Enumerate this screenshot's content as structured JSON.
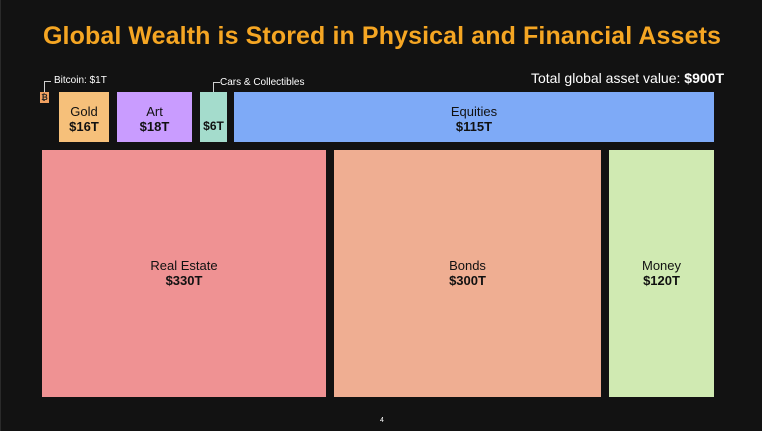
{
  "title": "Global Wealth is Stored in Physical and Financial Assets",
  "total_label": "Total global asset value: ",
  "total_value": "$900T",
  "callouts": {
    "bitcoin": "Bitcoin: $1T",
    "cars": "Cars & Collectibles",
    "bitcoin_icon": "bitcoin-glyph"
  },
  "page_number": "4",
  "chart_data": {
    "type": "treemap",
    "unit": "$T",
    "items": [
      {
        "name": "Bitcoin",
        "value": 1,
        "value_label": "",
        "color": "#f0a060"
      },
      {
        "name": "Gold",
        "value": 16,
        "value_label": "$16T",
        "color": "#f6c07a"
      },
      {
        "name": "Art",
        "value": 18,
        "value_label": "$18T",
        "color": "#c99cff"
      },
      {
        "name": "Cars & Collectibles",
        "value": 6,
        "value_label": "$6T",
        "color": "#a4dccc"
      },
      {
        "name": "Equities",
        "value": 115,
        "value_label": "$115T",
        "color": "#7eaaf7"
      },
      {
        "name": "Real Estate",
        "value": 330,
        "value_label": "$330T",
        "color": "#ef9293"
      },
      {
        "name": "Bonds",
        "value": 300,
        "value_label": "$300T",
        "color": "#efae92"
      },
      {
        "name": "Money",
        "value": 120,
        "value_label": "$120T",
        "color": "#d0eab2"
      }
    ]
  }
}
